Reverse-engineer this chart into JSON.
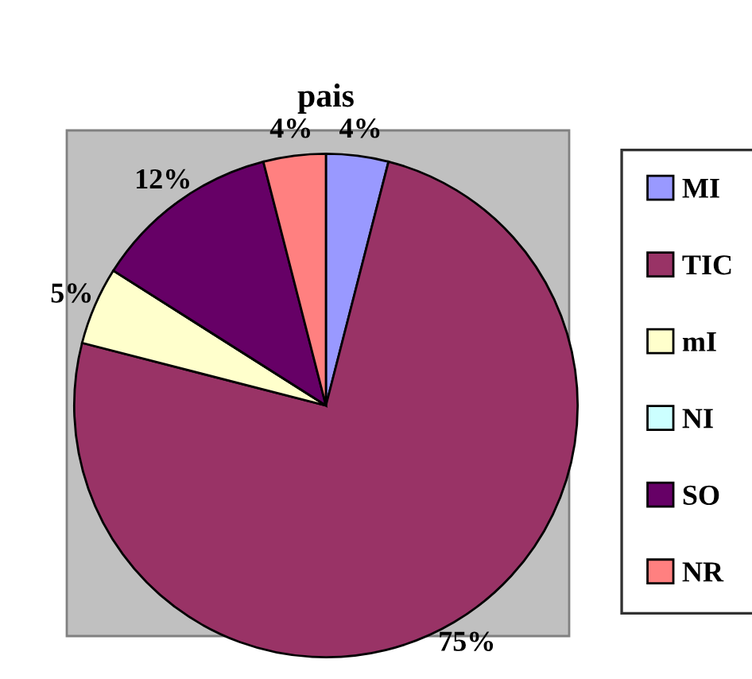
{
  "chart_data": {
    "type": "pie",
    "title": "pais",
    "categories": [
      "MI",
      "TIC",
      "mI",
      "NI",
      "SO",
      "NR"
    ],
    "values": [
      4,
      75,
      5,
      0,
      12,
      4
    ],
    "value_labels": [
      "4%",
      "75%",
      "5%",
      null,
      "12%",
      "4%"
    ],
    "colors": [
      "#9999ff",
      "#993366",
      "#ffffcc",
      "#ccffff",
      "#660066",
      "#ff8080"
    ],
    "legend": "right"
  }
}
